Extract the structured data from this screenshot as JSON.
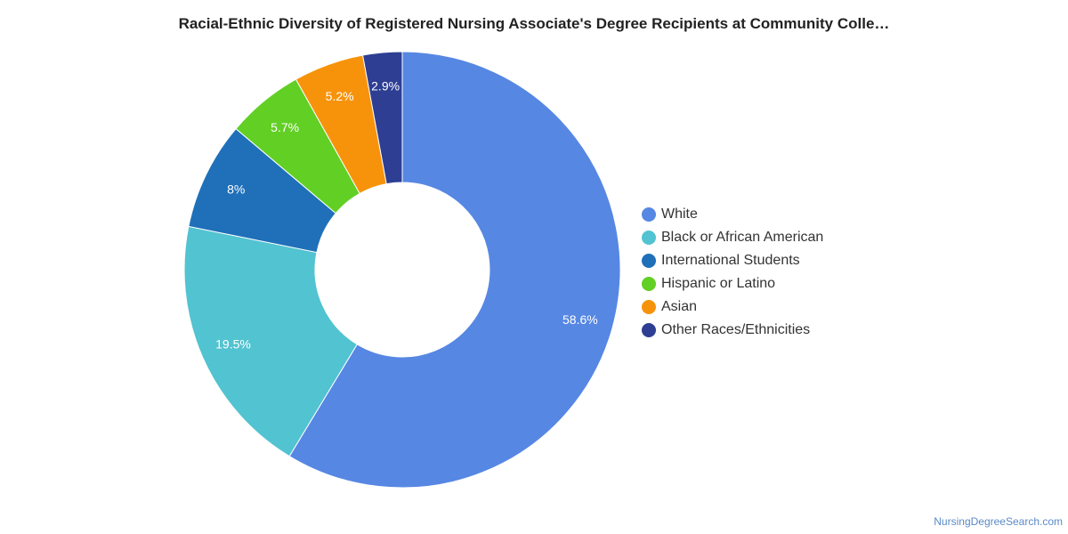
{
  "chart_data": {
    "type": "pie",
    "variant": "donut",
    "title": "Racial-Ethnic Diversity of Registered Nursing Associate's Degree Recipients at Community Colle…",
    "categories": [
      "White",
      "Black or African American",
      "International Students",
      "Hispanic or Latino",
      "Asian",
      "Other Races/Ethnicities"
    ],
    "values": [
      58.6,
      19.5,
      8.0,
      5.7,
      5.2,
      2.9
    ],
    "labels": [
      "58.6%",
      "19.5%",
      "8%",
      "5.7%",
      "5.2%",
      "2.9%"
    ],
    "colors": [
      "#5687e3",
      "#52c3d0",
      "#1f70b9",
      "#62cf24",
      "#f7930b",
      "#2d3e93"
    ],
    "legend_position": "right",
    "label_color": "#ffffff"
  },
  "footer": {
    "credit": "NursingDegreeSearch.com"
  }
}
